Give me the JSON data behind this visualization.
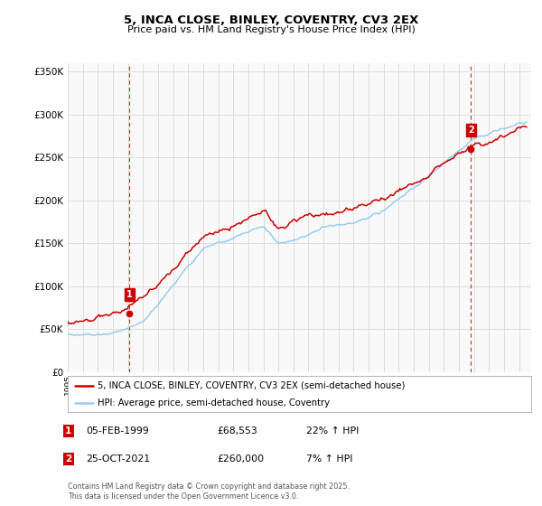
{
  "title": "5, INCA CLOSE, BINLEY, COVENTRY, CV3 2EX",
  "subtitle": "Price paid vs. HM Land Registry's House Price Index (HPI)",
  "ylim": [
    0,
    360000
  ],
  "yticks": [
    0,
    50000,
    100000,
    150000,
    200000,
    250000,
    300000,
    350000
  ],
  "legend_property_label": "5, INCA CLOSE, BINLEY, COVENTRY, CV3 2EX (semi-detached house)",
  "legend_hpi_label": "HPI: Average price, semi-detached house, Coventry",
  "property_color": "#cc0000",
  "hpi_color": "#99ccee",
  "marker1_label": "1",
  "marker1_date": "05-FEB-1999",
  "marker1_price": "£68,553",
  "marker1_hpi": "22% ↑ HPI",
  "marker1_x": 1999.1,
  "marker1_y": 68553,
  "marker2_label": "2",
  "marker2_date": "25-OCT-2021",
  "marker2_price": "£260,000",
  "marker2_hpi": "7% ↑ HPI",
  "marker2_x": 2021.8,
  "marker2_y": 260000,
  "footer": "Contains HM Land Registry data © Crown copyright and database right 2025.\nThis data is licensed under the Open Government Licence v3.0.",
  "background_color": "#f9f9f9",
  "grid_color": "#dddddd",
  "marker_vline_color": "#cc0000",
  "marker_box_color": "#cc0000",
  "xlim_left": 1995.0,
  "xlim_right": 2025.8
}
